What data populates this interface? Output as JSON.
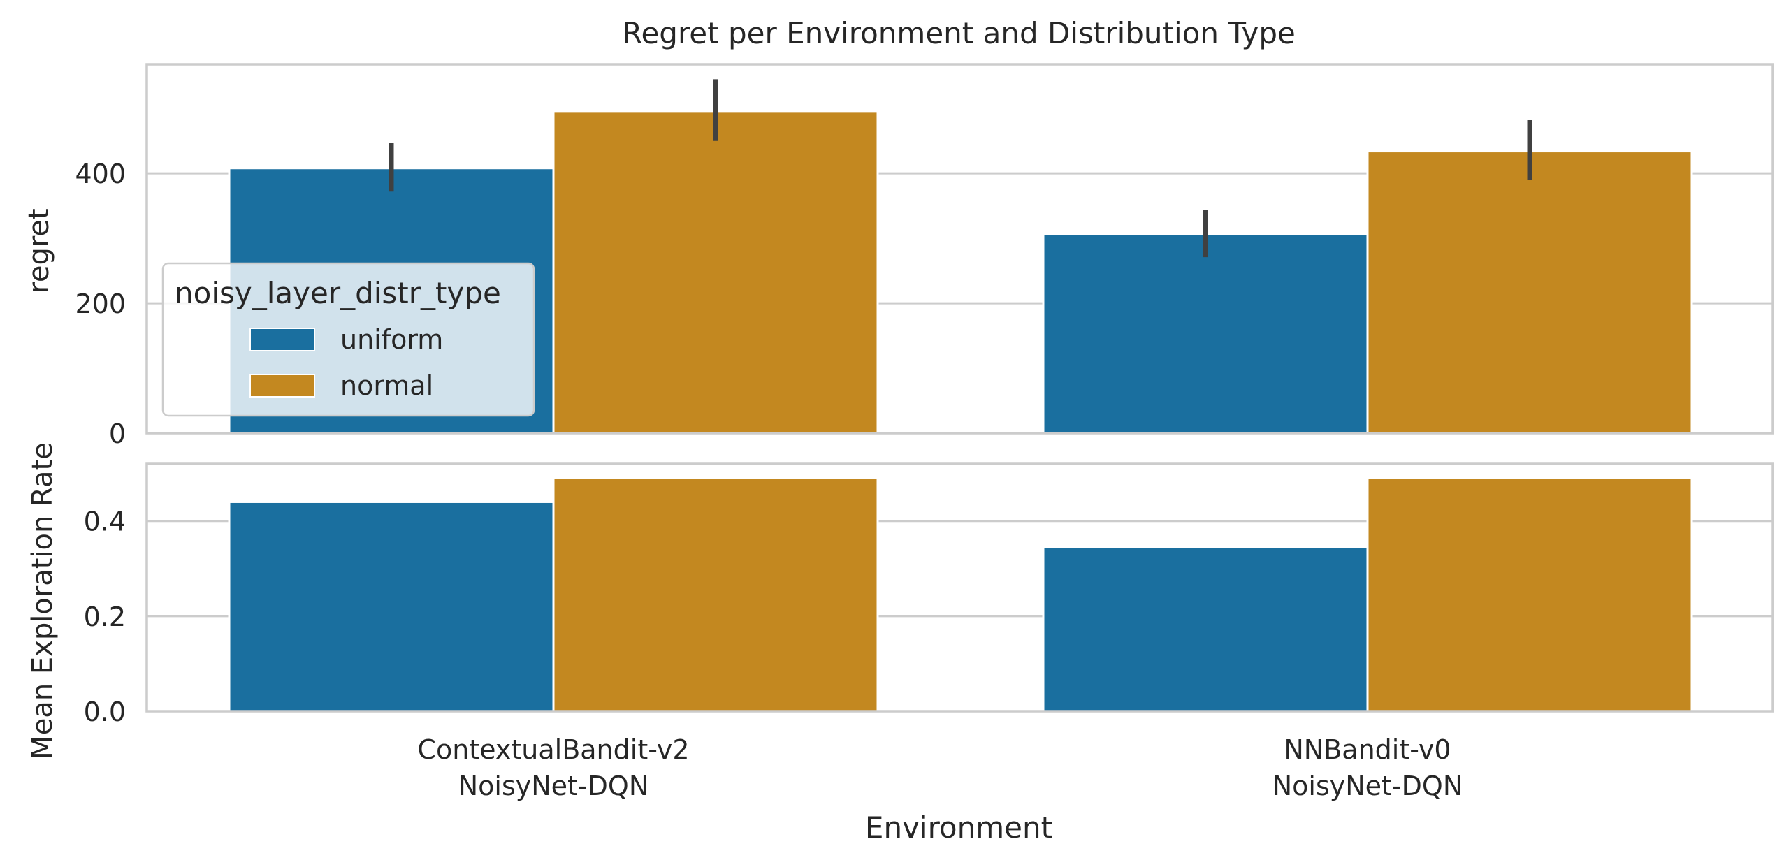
{
  "chart_data": {
    "type": "bar",
    "title": "Regret per Environment and Distribution Type",
    "xlabel": "Environment",
    "categories": [
      [
        "ContextualBandit-v2",
        "NoisyNet-DQN"
      ],
      [
        "NNBandit-v0",
        "NoisyNet-DQN"
      ]
    ],
    "legend": {
      "title": "noisy_layer_distr_type",
      "placement": "center-left",
      "entries": [
        "uniform",
        "normal"
      ]
    },
    "colors": {
      "uniform": "#1a6f9f",
      "normal": "#c38820",
      "errorbar": "#404040",
      "grid": "#cccccc"
    },
    "panels": [
      {
        "ylabel": "regret",
        "ylim": [
          0,
          568
        ],
        "yticks": [
          0,
          200,
          400
        ],
        "ytick_labels": [
          "0",
          "200",
          "400"
        ],
        "grid": true,
        "series": [
          {
            "name": "uniform",
            "values": [
              408,
              307
            ],
            "errors": [
              [
                372,
                447
              ],
              [
                271,
                344
              ]
            ]
          },
          {
            "name": "normal",
            "values": [
              495,
              434
            ],
            "errors": [
              [
                450,
                545
              ],
              [
                390,
                482
              ]
            ]
          }
        ]
      },
      {
        "ylabel": "Mean Exploration Rate",
        "ylim": [
          0,
          0.52
        ],
        "yticks": [
          0.0,
          0.2,
          0.4
        ],
        "ytick_labels": [
          "0.0",
          "0.2",
          "0.4"
        ],
        "grid": true,
        "series": [
          {
            "name": "uniform",
            "values": [
              0.44,
              0.345
            ]
          },
          {
            "name": "normal",
            "values": [
              0.49,
              0.49
            ]
          }
        ]
      }
    ]
  }
}
